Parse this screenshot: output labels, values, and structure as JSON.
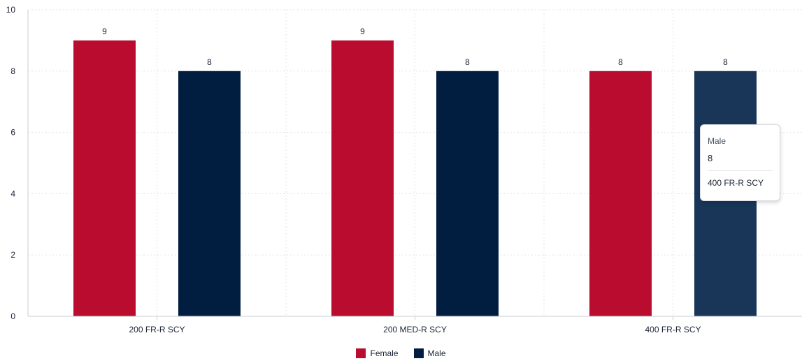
{
  "chart_data": {
    "type": "bar",
    "title": "",
    "xlabel": "",
    "ylabel": "",
    "categories": [
      "200 FR-R SCY",
      "200 MED-R SCY",
      "400 FR-R SCY"
    ],
    "series": [
      {
        "name": "Female",
        "values": [
          9,
          9,
          8
        ],
        "color": "#b90c2e"
      },
      {
        "name": "Male",
        "values": [
          8,
          8,
          8
        ],
        "color": "#011e41"
      }
    ],
    "ylim": [
      0,
      10
    ],
    "yticks": [
      0,
      2,
      4,
      6,
      8,
      10
    ],
    "grid": true,
    "legend_position": "bottom-center",
    "highlight_color": "#193659"
  },
  "tooltip": {
    "series": "Male",
    "value": "8",
    "category": "400 FR-R SCY"
  },
  "legend": {
    "items": [
      {
        "label": "Female",
        "color": "#b90c2e"
      },
      {
        "label": "Male",
        "color": "#011e41"
      }
    ]
  }
}
